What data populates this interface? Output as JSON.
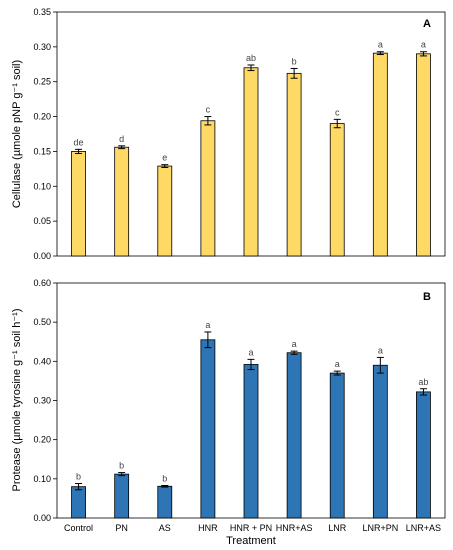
{
  "chart_data": [
    {
      "panel": "A",
      "type": "bar",
      "categories": [
        "Control",
        "PN",
        "AS",
        "HNR",
        "HNR + PN",
        "HNR+AS",
        "LNR",
        "LNR+PN",
        "LNR+AS"
      ],
      "values": [
        0.15,
        0.156,
        0.129,
        0.194,
        0.27,
        0.262,
        0.19,
        0.291,
        0.29
      ],
      "errors": [
        0.003,
        0.002,
        0.002,
        0.006,
        0.004,
        0.007,
        0.006,
        0.002,
        0.003
      ],
      "significance": [
        "de",
        "d",
        "e",
        "c",
        "ab",
        "b",
        "c",
        "a",
        "a"
      ],
      "ylabel": "Cellulase (µmole pNP g⁻¹ soil)",
      "ylim": [
        0,
        0.35
      ],
      "yticks": [
        "0.00",
        "0.05",
        "0.10",
        "0.15",
        "0.20",
        "0.25",
        "0.30",
        "0.35"
      ],
      "bar_color": "#FFD966",
      "show_xticklabels": false
    },
    {
      "panel": "B",
      "type": "bar",
      "categories": [
        "Control",
        "PN",
        "AS",
        "HNR",
        "HNR + PN",
        "HNR+AS",
        "LNR",
        "LNR+PN",
        "LNR+AS"
      ],
      "values": [
        0.08,
        0.112,
        0.081,
        0.455,
        0.392,
        0.422,
        0.37,
        0.39,
        0.322
      ],
      "errors": [
        0.008,
        0.004,
        0.002,
        0.02,
        0.013,
        0.004,
        0.005,
        0.02,
        0.008
      ],
      "significance": [
        "b",
        "b",
        "b",
        "a",
        "a",
        "a",
        "a",
        "a",
        "ab"
      ],
      "xlabel": "Treatment",
      "ylabel": "Protease (µmole tyrosine g⁻¹ soil h⁻¹)",
      "ylim": [
        0,
        0.6
      ],
      "yticks": [
        "0.00",
        "0.10",
        "0.20",
        "0.30",
        "0.40",
        "0.50",
        "0.60"
      ],
      "bar_color": "#2E75B6",
      "show_xticklabels": true
    }
  ]
}
